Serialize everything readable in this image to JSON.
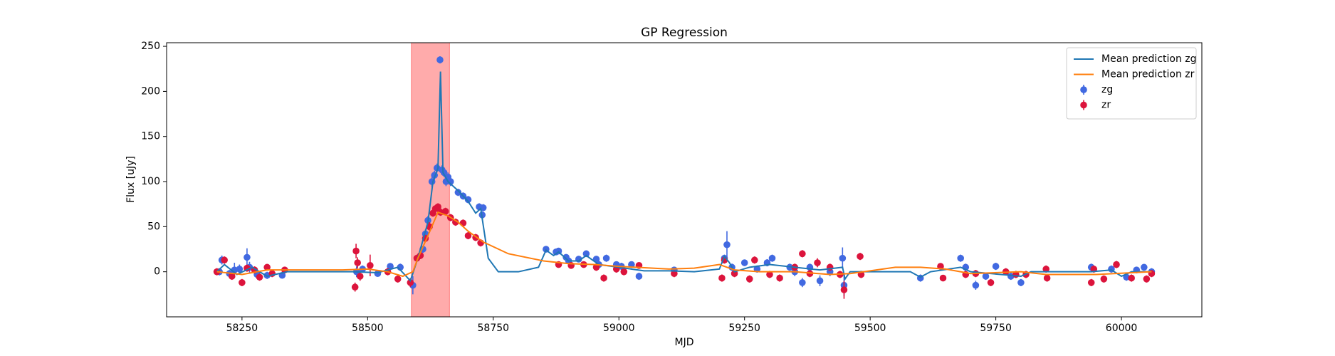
{
  "chart_data": {
    "type": "scatter",
    "title": "GP Regression",
    "xlabel": "MJD",
    "ylabel": "Flux [uJy]",
    "xlim": [
      58100,
      60160
    ],
    "ylim": [
      -50,
      254
    ],
    "xticks": [
      58250,
      58500,
      58750,
      59000,
      59250,
      59500,
      59750,
      60000
    ],
    "yticks": [
      0,
      50,
      100,
      150,
      200,
      250
    ],
    "legend": "upper right",
    "span": {
      "x": [
        58587,
        58663
      ],
      "color": "#ff0000"
    },
    "series": [
      {
        "name": "Mean prediction zg",
        "type": "line",
        "color": "#1f77b4",
        "x": [
          58200,
          58215,
          58240,
          58270,
          58300,
          58340,
          58400,
          58470,
          58520,
          58560,
          58585,
          58600,
          58620,
          58630,
          58640,
          58645,
          58650,
          58660,
          58680,
          58700,
          58715,
          58725,
          58740,
          58760,
          58800,
          58840,
          58855,
          58870,
          58880,
          58900,
          58920,
          58935,
          58960,
          59000,
          59050,
          59100,
          59150,
          59200,
          59210,
          59220,
          59230,
          59260,
          59300,
          59400,
          59445,
          59450,
          59460,
          59580,
          59600,
          59620,
          59680,
          59700,
          59800,
          59820,
          59940,
          59980,
          60000,
          60020,
          60060
        ],
        "values": [
          0,
          8,
          -3,
          5,
          -5,
          0,
          0,
          0,
          -1,
          5,
          -10,
          15,
          55,
          100,
          115,
          222,
          110,
          100,
          90,
          78,
          65,
          70,
          15,
          0,
          0,
          5,
          24,
          18,
          22,
          12,
          12,
          18,
          8,
          5,
          1,
          1,
          0,
          3,
          17,
          10,
          0,
          5,
          8,
          2,
          5,
          -8,
          0,
          0,
          -6,
          0,
          5,
          0,
          -5,
          0,
          0,
          2,
          -5,
          0,
          0
        ]
      },
      {
        "name": "Mean prediction zr",
        "type": "line",
        "color": "#ff7f0e",
        "x": [
          58200,
          58250,
          58300,
          58350,
          58450,
          58500,
          58540,
          58570,
          58590,
          58600,
          58620,
          58640,
          58660,
          58680,
          58700,
          58730,
          58780,
          58850,
          58900,
          58950,
          59000,
          59100,
          59150,
          59200,
          59230,
          59280,
          59350,
          59420,
          59460,
          59500,
          59550,
          59600,
          59650,
          59700,
          59800,
          59850,
          59950,
          60060
        ],
        "values": [
          0,
          -3,
          2,
          2,
          2,
          3,
          0,
          -5,
          0,
          15,
          40,
          66,
          62,
          55,
          45,
          33,
          20,
          12,
          9,
          8,
          6,
          3,
          4,
          8,
          2,
          0,
          0,
          -3,
          -2,
          1,
          5,
          5,
          3,
          -2,
          0,
          -3,
          -3,
          0
        ]
      },
      {
        "name": "zg",
        "type": "errorbar",
        "color": "#4169e1",
        "x": [
          58205,
          58210,
          58225,
          58235,
          58245,
          58260,
          58265,
          58280,
          58300,
          58330,
          58478,
          58490,
          58520,
          58545,
          58565,
          58590,
          58610,
          58615,
          58620,
          58628,
          58633,
          58638,
          58644,
          58648,
          58652,
          58656,
          58660,
          58665,
          58680,
          58690,
          58700,
          58722,
          58728,
          58730,
          58855,
          58875,
          58880,
          58895,
          58900,
          58920,
          58935,
          58955,
          58960,
          58975,
          58995,
          59005,
          59025,
          59040,
          59110,
          59210,
          59215,
          59225,
          59250,
          59275,
          59295,
          59305,
          59340,
          59350,
          59365,
          59380,
          59400,
          59420,
          59445,
          59448,
          59600,
          59680,
          59690,
          59710,
          59730,
          59750,
          59780,
          59800,
          59940,
          59980,
          60010,
          60030,
          60045,
          60060
        ],
        "values": [
          0,
          13,
          -2,
          2,
          3,
          16,
          5,
          -3,
          -4,
          -4,
          0,
          3,
          -2,
          6,
          5,
          -15,
          25,
          42,
          57,
          100,
          107,
          115,
          235,
          113,
          110,
          100,
          105,
          100,
          88,
          84,
          80,
          72,
          63,
          71,
          25,
          22,
          23,
          16,
          12,
          14,
          20,
          14,
          8,
          15,
          8,
          6,
          8,
          -5,
          2,
          15,
          30,
          5,
          10,
          3,
          10,
          15,
          5,
          0,
          -12,
          5,
          -10,
          0,
          15,
          -15,
          -7,
          15,
          5,
          -15,
          -5,
          6,
          -5,
          -12,
          5,
          3,
          -6,
          2,
          5,
          0
        ],
        "errors": [
          4,
          5,
          4,
          8,
          5,
          10,
          6,
          5,
          4,
          3,
          6,
          4,
          3,
          3,
          4,
          10,
          4,
          5,
          5,
          6,
          5,
          5,
          4,
          5,
          5,
          5,
          5,
          5,
          4,
          4,
          4,
          4,
          4,
          4,
          3,
          3,
          3,
          3,
          3,
          3,
          3,
          3,
          5,
          4,
          3,
          4,
          3,
          4,
          3,
          4,
          15,
          4,
          3,
          4,
          4,
          4,
          4,
          5,
          5,
          4,
          6,
          5,
          12,
          12,
          4,
          4,
          4,
          5,
          4,
          4,
          4,
          4,
          4,
          4,
          4,
          3,
          3,
          4
        ]
      },
      {
        "name": "zr",
        "type": "errorbar",
        "color": "#dc143c",
        "x": [
          58200,
          58215,
          58230,
          58250,
          58260,
          58275,
          58285,
          58300,
          58310,
          58335,
          58475,
          58477,
          58480,
          58485,
          58505,
          58540,
          58560,
          58585,
          58598,
          58605,
          58615,
          58623,
          58630,
          58635,
          58640,
          58645,
          58655,
          58665,
          58675,
          58690,
          58700,
          58715,
          58725,
          58880,
          58905,
          58930,
          58955,
          58970,
          58995,
          59010,
          59040,
          59110,
          59205,
          59210,
          59230,
          59260,
          59270,
          59300,
          59320,
          59350,
          59365,
          59380,
          59395,
          59420,
          59440,
          59448,
          59480,
          59482,
          59640,
          59645,
          59690,
          59710,
          59740,
          59770,
          59790,
          59810,
          59850,
          59852,
          59940,
          59945,
          59965,
          59990,
          60020,
          60050,
          60060
        ],
        "values": [
          0,
          13,
          -5,
          -12,
          4,
          2,
          -6,
          5,
          -2,
          2,
          -17,
          23,
          10,
          -5,
          7,
          0,
          -8,
          -12,
          15,
          18,
          37,
          50,
          65,
          70,
          72,
          66,
          67,
          60,
          55,
          54,
          40,
          38,
          32,
          8,
          7,
          8,
          5,
          -7,
          3,
          0,
          7,
          -2,
          -7,
          13,
          -2,
          -8,
          13,
          -3,
          -7,
          5,
          20,
          -2,
          10,
          5,
          -3,
          -20,
          17,
          -3,
          6,
          -7,
          -3,
          -2,
          -12,
          0,
          -3,
          -3,
          3,
          -7,
          -12,
          3,
          -8,
          8,
          -7,
          -8,
          -2
        ],
        "errors": [
          4,
          4,
          4,
          4,
          4,
          4,
          4,
          3,
          4,
          3,
          5,
          8,
          6,
          5,
          12,
          4,
          4,
          5,
          4,
          4,
          4,
          5,
          4,
          4,
          4,
          4,
          4,
          4,
          4,
          4,
          4,
          4,
          4,
          3,
          3,
          3,
          4,
          4,
          4,
          4,
          3,
          4,
          4,
          4,
          4,
          4,
          4,
          4,
          4,
          4,
          4,
          4,
          5,
          4,
          4,
          10,
          4,
          4,
          3,
          3,
          4,
          4,
          4,
          4,
          4,
          4,
          4,
          4,
          4,
          4,
          4,
          4,
          4,
          4,
          4
        ]
      }
    ]
  }
}
